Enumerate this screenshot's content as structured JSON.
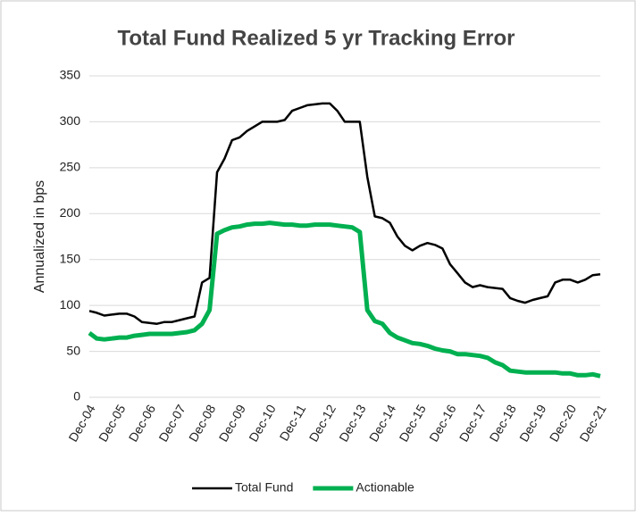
{
  "chart_data": {
    "type": "line",
    "title": "Total Fund Realized 5 yr Tracking Error",
    "y_label": "Annualized in bps",
    "categories": [
      "Dec-04",
      null,
      null,
      null,
      "Dec-05",
      null,
      null,
      null,
      "Dec-06",
      null,
      null,
      null,
      "Dec-07",
      null,
      null,
      null,
      "Dec-08",
      null,
      null,
      null,
      "Dec-09",
      null,
      null,
      null,
      "Dec-10",
      null,
      null,
      null,
      "Dec-11",
      null,
      null,
      null,
      "Dec-12",
      null,
      null,
      null,
      "Dec-13",
      null,
      null,
      null,
      "Dec-14",
      null,
      null,
      null,
      "Dec-15",
      null,
      null,
      null,
      "Dec-16",
      null,
      null,
      null,
      "Dec-17",
      null,
      null,
      null,
      "Dec-18",
      null,
      null,
      null,
      "Dec-19",
      null,
      null,
      null,
      "Dec-20",
      null,
      null,
      null,
      "Dec-21"
    ],
    "series": [
      {
        "name": "Total Fund",
        "color": "#000000",
        "values": [
          94,
          92,
          89,
          90,
          91,
          91,
          88,
          82,
          81,
          80,
          82,
          82,
          84,
          86,
          88,
          125,
          130,
          245,
          260,
          280,
          283,
          290,
          295,
          300,
          300,
          300,
          302,
          312,
          315,
          318,
          319,
          320,
          320,
          312,
          300,
          300,
          300,
          240,
          197,
          195,
          190,
          175,
          165,
          160,
          165,
          168,
          166,
          162,
          145,
          135,
          125,
          120,
          122,
          120,
          119,
          118,
          108,
          105,
          103,
          106,
          108,
          110,
          125,
          128,
          128,
          125,
          128,
          133,
          134
        ]
      },
      {
        "name": "Actionable",
        "color": "#00b050",
        "values": [
          70,
          64,
          63,
          64,
          65,
          65,
          67,
          68,
          69,
          69,
          69,
          69,
          70,
          71,
          73,
          80,
          95,
          178,
          182,
          185,
          186,
          188,
          189,
          189,
          190,
          189,
          188,
          188,
          187,
          187,
          188,
          188,
          188,
          187,
          186,
          185,
          180,
          95,
          83,
          80,
          70,
          65,
          62,
          59,
          58,
          56,
          53,
          51,
          50,
          47,
          47,
          46,
          45,
          43,
          38,
          35,
          29,
          28,
          27,
          27,
          27,
          27,
          27,
          26,
          26,
          24,
          24,
          25,
          23
        ]
      }
    ],
    "ylim": [
      0,
      350
    ],
    "yticks": [
      0,
      50,
      100,
      150,
      200,
      250,
      300,
      350
    ],
    "grid": true,
    "legend": "bottom"
  }
}
